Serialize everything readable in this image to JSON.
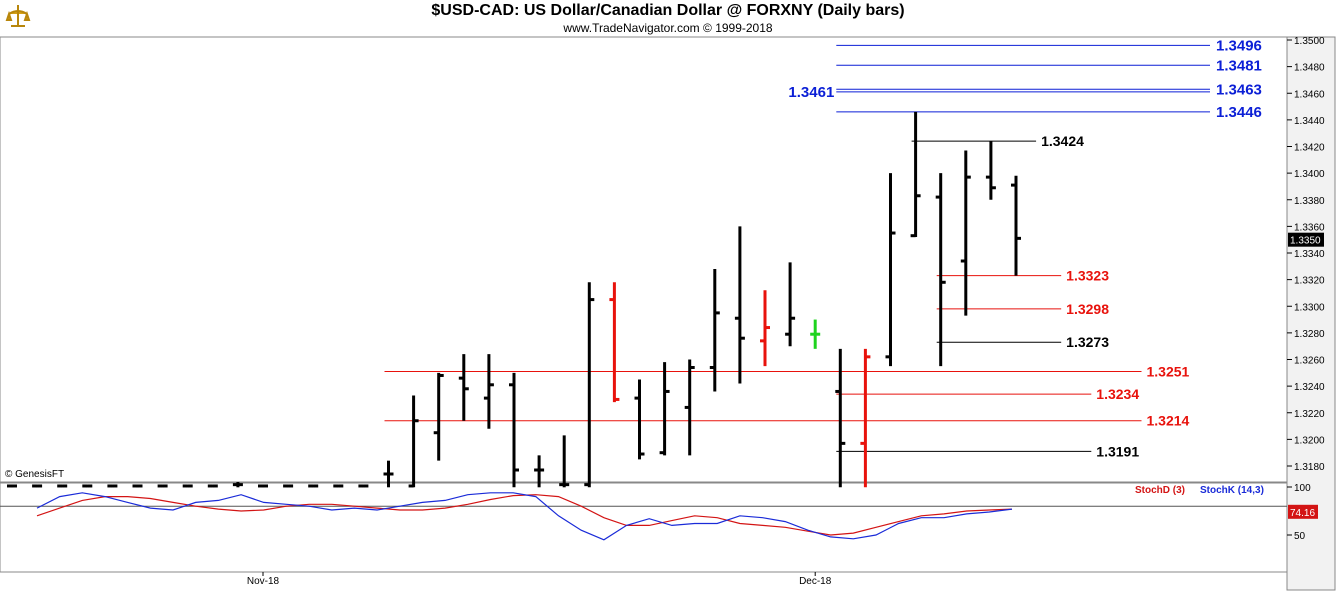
{
  "header": {
    "title": "$USD-CAD:  US Dollar/Canadian Dollar @ FORXNY  (Daily bars)",
    "subtitle": "www.TradeNavigator.com © 1999-2018",
    "logo_icon": "genesis-logo-icon"
  },
  "copyright": "© GenesisFT",
  "colors": {
    "bar": "#000000",
    "down_bar": "#e8120c",
    "up_bar": "#1ed31e",
    "blue_level": "#0b1fd6",
    "red_level": "#e8120c",
    "black_level": "#000000",
    "stochK": "#1a2bd8",
    "stochD": "#d31414",
    "last_price_bg": "#000000"
  },
  "chart_data": [
    {
      "type": "ohlc",
      "title": "$USD-CAD:  US Dollar/Canadian Dollar @ FORXNY  (Daily bars)",
      "ylim": [
        1.316,
        1.351
      ],
      "y_ticks": [
        "1.3180",
        "1.3200",
        "1.3220",
        "1.3240",
        "1.3260",
        "1.3280",
        "1.3300",
        "1.3320",
        "1.3340",
        "1.3360",
        "1.3380",
        "1.3400",
        "1.3420",
        "1.3440",
        "1.3460",
        "1.3480",
        "1.3500"
      ],
      "x_labels": [
        {
          "label": "Nov-18",
          "bar": 10
        },
        {
          "label": "Dec-18",
          "bar": 32
        }
      ],
      "last_price": "1.3350",
      "bars": [
        {
          "h": 1.3166,
          "l": 1.3164,
          "o": 1.3165,
          "c": 1.3165,
          "col": "bar"
        },
        {
          "h": 1.3166,
          "l": 1.3164,
          "o": 1.3165,
          "c": 1.3165,
          "col": "bar"
        },
        {
          "h": 1.3166,
          "l": 1.3164,
          "o": 1.3165,
          "c": 1.3165,
          "col": "bar"
        },
        {
          "h": 1.3166,
          "l": 1.3164,
          "o": 1.3165,
          "c": 1.3165,
          "col": "bar"
        },
        {
          "h": 1.3166,
          "l": 1.3164,
          "o": 1.3165,
          "c": 1.3165,
          "col": "bar"
        },
        {
          "h": 1.3166,
          "l": 1.3164,
          "o": 1.3165,
          "c": 1.3165,
          "col": "bar"
        },
        {
          "h": 1.3166,
          "l": 1.3164,
          "o": 1.3165,
          "c": 1.3165,
          "col": "bar"
        },
        {
          "h": 1.3166,
          "l": 1.3164,
          "o": 1.3165,
          "c": 1.3165,
          "col": "bar"
        },
        {
          "h": 1.3166,
          "l": 1.3164,
          "o": 1.3165,
          "c": 1.3165,
          "col": "bar"
        },
        {
          "h": 1.3168,
          "l": 1.3164,
          "o": 1.3166,
          "c": 1.3166,
          "col": "bar"
        },
        {
          "h": 1.3166,
          "l": 1.3164,
          "o": 1.3165,
          "c": 1.3165,
          "col": "bar"
        },
        {
          "h": 1.3166,
          "l": 1.3164,
          "o": 1.3165,
          "c": 1.3165,
          "col": "bar"
        },
        {
          "h": 1.3166,
          "l": 1.3164,
          "o": 1.3165,
          "c": 1.3165,
          "col": "bar"
        },
        {
          "h": 1.3166,
          "l": 1.3164,
          "o": 1.3165,
          "c": 1.3165,
          "col": "bar"
        },
        {
          "h": 1.3166,
          "l": 1.3164,
          "o": 1.3165,
          "c": 1.3165,
          "col": "bar"
        },
        {
          "h": 1.3184,
          "l": 1.3164,
          "o": 1.3174,
          "c": 1.3174,
          "col": "bar"
        },
        {
          "h": 1.3233,
          "l": 1.3164,
          "o": 1.3165,
          "c": 1.3214,
          "col": "bar"
        },
        {
          "h": 1.325,
          "l": 1.3184,
          "o": 1.3205,
          "c": 1.3248,
          "col": "bar"
        },
        {
          "h": 1.3264,
          "l": 1.3214,
          "o": 1.3246,
          "c": 1.3238,
          "col": "bar"
        },
        {
          "h": 1.3264,
          "l": 1.3208,
          "o": 1.3231,
          "c": 1.3241,
          "col": "bar"
        },
        {
          "h": 1.325,
          "l": 1.3164,
          "o": 1.3241,
          "c": 1.3177,
          "col": "bar"
        },
        {
          "h": 1.3188,
          "l": 1.3164,
          "o": 1.3177,
          "c": 1.3177,
          "col": "bar"
        },
        {
          "h": 1.3203,
          "l": 1.3164,
          "o": 1.3166,
          "c": 1.3166,
          "col": "bar"
        },
        {
          "h": 1.3318,
          "l": 1.3164,
          "o": 1.3166,
          "c": 1.3305,
          "col": "bar"
        },
        {
          "h": 1.3318,
          "l": 1.3228,
          "o": 1.3305,
          "c": 1.323,
          "col": "down_bar"
        },
        {
          "h": 1.3245,
          "l": 1.3185,
          "o": 1.3231,
          "c": 1.3189,
          "col": "bar"
        },
        {
          "h": 1.3258,
          "l": 1.3188,
          "o": 1.319,
          "c": 1.3236,
          "col": "bar"
        },
        {
          "h": 1.326,
          "l": 1.3188,
          "o": 1.3224,
          "c": 1.3254,
          "col": "bar"
        },
        {
          "h": 1.3328,
          "l": 1.3236,
          "o": 1.3254,
          "c": 1.3295,
          "col": "bar"
        },
        {
          "h": 1.336,
          "l": 1.3242,
          "o": 1.3291,
          "c": 1.3276,
          "col": "bar"
        },
        {
          "h": 1.3312,
          "l": 1.3255,
          "o": 1.3274,
          "c": 1.3284,
          "col": "down_bar"
        },
        {
          "h": 1.3333,
          "l": 1.327,
          "o": 1.3279,
          "c": 1.3291,
          "col": "bar"
        },
        {
          "h": 1.329,
          "l": 1.3268,
          "o": 1.3279,
          "c": 1.3279,
          "col": "up_bar"
        },
        {
          "h": 1.3268,
          "l": 1.3164,
          "o": 1.3236,
          "c": 1.3197,
          "col": "bar"
        },
        {
          "h": 1.3268,
          "l": 1.3164,
          "o": 1.3197,
          "c": 1.3262,
          "col": "down_bar"
        },
        {
          "h": 1.34,
          "l": 1.3255,
          "o": 1.3262,
          "c": 1.3355,
          "col": "bar"
        },
        {
          "h": 1.3446,
          "l": 1.3352,
          "o": 1.3353,
          "c": 1.3383,
          "col": "bar"
        },
        {
          "h": 1.34,
          "l": 1.3255,
          "o": 1.3382,
          "c": 1.3318,
          "col": "bar"
        },
        {
          "h": 1.3417,
          "l": 1.3293,
          "o": 1.3334,
          "c": 1.3397,
          "col": "bar"
        },
        {
          "h": 1.3424,
          "l": 1.338,
          "o": 1.3397,
          "c": 1.3389,
          "col": "bar"
        },
        {
          "h": 1.3398,
          "l": 1.3323,
          "o": 1.3391,
          "c": 1.3351,
          "col": "bar"
        }
      ],
      "levels": [
        {
          "value": 1.3496,
          "label": "1.3496",
          "color": "blue_level",
          "from_bar": 33,
          "label_side": "right"
        },
        {
          "value": 1.3481,
          "label": "1.3481",
          "color": "blue_level",
          "from_bar": 33,
          "label_side": "right"
        },
        {
          "value": 1.3463,
          "label": "1.3463",
          "color": "blue_level",
          "from_bar": 33,
          "label_side": "right"
        },
        {
          "value": 1.3461,
          "label": "1.3461",
          "color": "blue_level",
          "from_bar": 33,
          "label_side": "left"
        },
        {
          "value": 1.3446,
          "label": "1.3446",
          "color": "blue_level",
          "from_bar": 33,
          "label_side": "right"
        },
        {
          "value": 1.3424,
          "label": "1.3424",
          "color": "black_level",
          "from_bar": 36,
          "to_bar": 40.8,
          "label_side": "after"
        },
        {
          "value": 1.3323,
          "label": "1.3323",
          "color": "red_level",
          "from_bar": 37,
          "to_bar": 41.8,
          "label_side": "after"
        },
        {
          "value": 1.3298,
          "label": "1.3298",
          "color": "red_level",
          "from_bar": 37,
          "to_bar": 41.8,
          "label_side": "after"
        },
        {
          "value": 1.3273,
          "label": "1.3273",
          "color": "black_level",
          "from_bar": 37,
          "to_bar": 41.8,
          "label_side": "after"
        },
        {
          "value": 1.3251,
          "label": "1.3251",
          "color": "red_level",
          "from_bar": 15,
          "to_bar": 45,
          "label_side": "after"
        },
        {
          "value": 1.3234,
          "label": "1.3234",
          "color": "red_level",
          "from_bar": 33,
          "to_bar": 43,
          "label_side": "after"
        },
        {
          "value": 1.3214,
          "label": "1.3214",
          "color": "red_level",
          "from_bar": 15,
          "to_bar": 45,
          "label_side": "after"
        },
        {
          "value": 1.3191,
          "label": "1.3191",
          "color": "black_level",
          "from_bar": 33,
          "to_bar": 43,
          "label_side": "after"
        }
      ]
    },
    {
      "type": "line",
      "ylim": [
        0,
        100
      ],
      "y_ticks": [
        "100",
        "50"
      ],
      "last_value": "74.16",
      "series": [
        {
          "name": "StochD (3)",
          "color": "stochD",
          "values": [
            70,
            78,
            86,
            90,
            90,
            88,
            84,
            80,
            77,
            75,
            76,
            80,
            82,
            82,
            80,
            78,
            76,
            76,
            78,
            82,
            87,
            91,
            92,
            90,
            80,
            68,
            60,
            60,
            65,
            70,
            68,
            62,
            60,
            58,
            54,
            50,
            52,
            58,
            64,
            70,
            72,
            75,
            76,
            77
          ]
        },
        {
          "name": "StochK (14,3)",
          "color": "stochK",
          "values": [
            78,
            90,
            94,
            90,
            84,
            78,
            76,
            84,
            86,
            92,
            84,
            82,
            80,
            76,
            78,
            76,
            80,
            84,
            86,
            92,
            94,
            94,
            90,
            70,
            55,
            45,
            60,
            67,
            60,
            62,
            62,
            70,
            68,
            64,
            55,
            48,
            46,
            50,
            62,
            68,
            68,
            72,
            74,
            77
          ]
        }
      ]
    }
  ]
}
